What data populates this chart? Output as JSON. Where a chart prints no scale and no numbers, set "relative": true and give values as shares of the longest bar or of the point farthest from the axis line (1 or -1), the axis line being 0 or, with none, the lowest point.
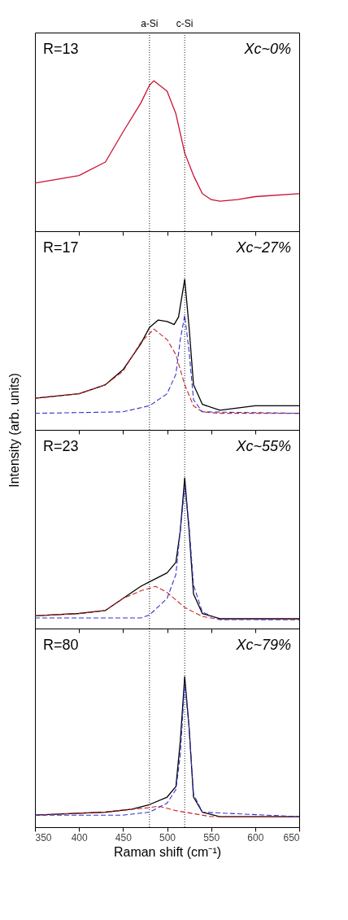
{
  "chart_data": [
    {
      "type": "line",
      "relative": true,
      "xlim": [
        350,
        650
      ],
      "xticks": [
        350,
        400,
        450,
        500,
        550,
        600,
        650
      ],
      "tick_labels": false,
      "annotations": [
        "R=13",
        "Xc~0%"
      ],
      "ref_lines": [
        {
          "axis": "x",
          "value": 480,
          "label": "a-Si",
          "line_style": "dotted",
          "color": "#000000"
        },
        {
          "axis": "x",
          "value": 520,
          "label": "c-Si",
          "line_style": "dotted",
          "color": "#000000"
        }
      ],
      "series": [
        {
          "color": "#cc1133",
          "line_style": "solid",
          "x": [
            350,
            400,
            430,
            450,
            470,
            480,
            485,
            500,
            510,
            520,
            530,
            540,
            550,
            560,
            580,
            600,
            650
          ],
          "values": [
            0.32,
            0.37,
            0.46,
            0.66,
            0.85,
            0.97,
            1.0,
            0.93,
            0.78,
            0.52,
            0.37,
            0.25,
            0.21,
            0.2,
            0.21,
            0.23,
            0.25
          ]
        }
      ]
    },
    {
      "type": "line",
      "relative": true,
      "xlim": [
        350,
        650
      ],
      "xticks": [
        350,
        400,
        450,
        500,
        550,
        600,
        650
      ],
      "tick_labels": false,
      "ylabel": "Intensity (arb. units)",
      "annotations": [
        "R=17",
        "Xc~27%"
      ],
      "ref_lines": [
        {
          "axis": "x",
          "value": 480,
          "line_style": "dotted",
          "color": "#000000"
        },
        {
          "axis": "x",
          "value": 520,
          "line_style": "dotted",
          "color": "#000000"
        }
      ],
      "series": [
        {
          "color": "#000000",
          "line_style": "solid",
          "x": [
            350,
            400,
            430,
            450,
            470,
            480,
            490,
            500,
            508,
            513,
            520,
            525,
            530,
            540,
            560,
            600,
            650
          ],
          "values": [
            0.21,
            0.24,
            0.3,
            0.4,
            0.57,
            0.68,
            0.73,
            0.72,
            0.7,
            0.75,
            1.0,
            0.68,
            0.3,
            0.17,
            0.13,
            0.16,
            0.16
          ]
        },
        {
          "color": "#cc2222",
          "line_style": "dashed",
          "x": [
            350,
            400,
            430,
            450,
            470,
            485,
            500,
            510,
            520,
            530,
            540,
            560,
            650
          ],
          "values": [
            0.21,
            0.24,
            0.3,
            0.39,
            0.58,
            0.67,
            0.6,
            0.5,
            0.3,
            0.16,
            0.12,
            0.11,
            0.11
          ]
        },
        {
          "color": "#3333cc",
          "line_style": "dashed",
          "x": [
            350,
            450,
            480,
            500,
            510,
            515,
            520,
            525,
            530,
            540,
            650
          ],
          "values": [
            0.11,
            0.12,
            0.16,
            0.24,
            0.37,
            0.6,
            0.76,
            0.52,
            0.2,
            0.12,
            0.11
          ]
        }
      ]
    },
    {
      "type": "line",
      "relative": true,
      "xlim": [
        350,
        650
      ],
      "xticks": [
        350,
        400,
        450,
        500,
        550,
        600,
        650
      ],
      "tick_labels": false,
      "annotations": [
        "R=23",
        "Xc~55%"
      ],
      "ref_lines": [
        {
          "axis": "x",
          "value": 480,
          "line_style": "dotted",
          "color": "#000000"
        },
        {
          "axis": "x",
          "value": 520,
          "line_style": "dotted",
          "color": "#000000"
        }
      ],
      "series": [
        {
          "color": "#000000",
          "line_style": "solid",
          "x": [
            350,
            400,
            430,
            450,
            470,
            480,
            500,
            510,
            515,
            520,
            525,
            530,
            540,
            560,
            650
          ],
          "values": [
            0.085,
            0.1,
            0.12,
            0.2,
            0.28,
            0.31,
            0.37,
            0.44,
            0.65,
            1.0,
            0.65,
            0.23,
            0.1,
            0.065,
            0.065
          ]
        },
        {
          "color": "#cc2222",
          "line_style": "dashed",
          "x": [
            350,
            400,
            430,
            450,
            470,
            487,
            500,
            520,
            540,
            560,
            650
          ],
          "values": [
            0.085,
            0.1,
            0.12,
            0.2,
            0.25,
            0.28,
            0.24,
            0.14,
            0.08,
            0.06,
            0.065
          ]
        },
        {
          "color": "#3333cc",
          "line_style": "dashed",
          "x": [
            350,
            470,
            480,
            500,
            510,
            515,
            520,
            525,
            530,
            540,
            560,
            650
          ],
          "values": [
            0.07,
            0.07,
            0.09,
            0.2,
            0.36,
            0.65,
            0.94,
            0.68,
            0.29,
            0.11,
            0.06,
            0.058
          ]
        }
      ]
    },
    {
      "type": "line",
      "relative": true,
      "xlim": [
        350,
        650
      ],
      "xticks": [
        350,
        400,
        450,
        500,
        550,
        600,
        650
      ],
      "tick_labels": "x",
      "xlabel": "Raman shift (cm⁻¹)",
      "annotations": [
        "R=80",
        "Xc~79%"
      ],
      "ref_lines": [
        {
          "axis": "x",
          "value": 480,
          "line_style": "dotted",
          "color": "#000000"
        },
        {
          "axis": "x",
          "value": 520,
          "line_style": "dotted",
          "color": "#000000"
        }
      ],
      "series": [
        {
          "color": "#000000",
          "line_style": "solid",
          "x": [
            350,
            430,
            460,
            480,
            500,
            510,
            515,
            520,
            525,
            530,
            540,
            560,
            650
          ],
          "values": [
            0.08,
            0.1,
            0.12,
            0.15,
            0.2,
            0.27,
            0.57,
            1.0,
            0.66,
            0.2,
            0.1,
            0.07,
            0.07
          ]
        },
        {
          "color": "#cc2222",
          "line_style": "dashed",
          "x": [
            350,
            430,
            480,
            490,
            510,
            530,
            550,
            650
          ],
          "values": [
            0.08,
            0.1,
            0.13,
            0.14,
            0.11,
            0.09,
            0.07,
            0.07
          ]
        },
        {
          "color": "#3333cc",
          "line_style": "dashed",
          "x": [
            350,
            450,
            480,
            500,
            510,
            515,
            520,
            525,
            530,
            540,
            650
          ],
          "values": [
            0.08,
            0.08,
            0.1,
            0.16,
            0.25,
            0.48,
            0.96,
            0.66,
            0.22,
            0.1,
            0.07
          ]
        }
      ]
    }
  ]
}
